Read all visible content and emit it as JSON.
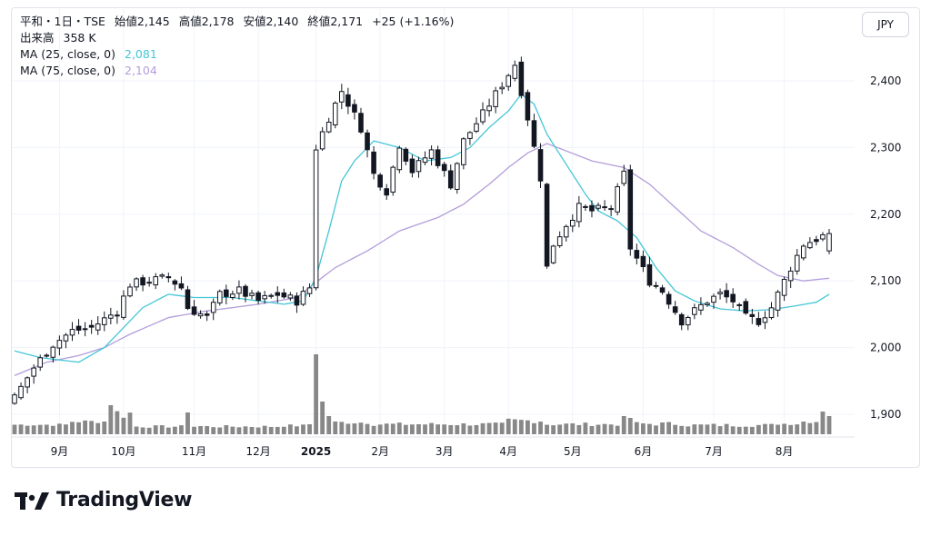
{
  "header": {
    "symbol_line": "平和・1日・TSE",
    "open_label": "始値",
    "open": "2,145",
    "high_label": "高値",
    "high": "2,178",
    "low_label": "安値",
    "low": "2,140",
    "close_label": "終値",
    "close": "2,171",
    "change": "+25 (+1.16%)",
    "volume_label": "出来高",
    "volume": "358 K",
    "ma25_label": "MA (25, close, 0)",
    "ma25_value": "2,081",
    "ma75_label": "MA (75, close, 0)",
    "ma75_value": "2,104"
  },
  "currency": "JPY",
  "brand": "TradingView",
  "colors": {
    "candle": "#131722",
    "ma25": "#45c6d6",
    "ma75": "#b39ddb",
    "volume": "#888888",
    "grid": "#f0f3fa"
  },
  "chart_data": {
    "type": "candlestick",
    "y_ticks": [
      1900,
      2000,
      2100,
      2200,
      2300,
      2400
    ],
    "y_tick_labels": [
      "1,900",
      "2,000",
      "2,100",
      "2,200",
      "2,300",
      "2,400"
    ],
    "ylim": [
      1855,
      2460
    ],
    "x_labels": [
      "9月",
      "10月",
      "11月",
      "12月",
      "2025",
      "2月",
      "3月",
      "4月",
      "5月",
      "6月",
      "7月",
      "8月"
    ],
    "x_label_bar_index": [
      7,
      17,
      28,
      38,
      47,
      57,
      67,
      77,
      87,
      98,
      109,
      120
    ],
    "bar_count": 128,
    "close_anchors": [
      [
        0,
        1925
      ],
      [
        3,
        1970
      ],
      [
        6,
        2005
      ],
      [
        9,
        2025
      ],
      [
        12,
        2030
      ],
      [
        16,
        2055
      ],
      [
        18,
        2095
      ],
      [
        21,
        2100
      ],
      [
        24,
        2105
      ],
      [
        26,
        2090
      ],
      [
        27,
        2060
      ],
      [
        30,
        2045
      ],
      [
        32,
        2080
      ],
      [
        35,
        2085
      ],
      [
        38,
        2070
      ],
      [
        41,
        2080
      ],
      [
        44,
        2070
      ],
      [
        46,
        2090
      ],
      [
        47,
        2300
      ],
      [
        49,
        2345
      ],
      [
        51,
        2385
      ],
      [
        54,
        2330
      ],
      [
        56,
        2260
      ],
      [
        58,
        2235
      ],
      [
        60,
        2305
      ],
      [
        62,
        2265
      ],
      [
        65,
        2295
      ],
      [
        68,
        2245
      ],
      [
        70,
        2310
      ],
      [
        73,
        2350
      ],
      [
        76,
        2395
      ],
      [
        78,
        2425
      ],
      [
        80,
        2345
      ],
      [
        82,
        2255
      ],
      [
        83,
        2120
      ],
      [
        84,
        2155
      ],
      [
        86,
        2185
      ],
      [
        88,
        2210
      ],
      [
        90,
        2205
      ],
      [
        93,
        2210
      ],
      [
        95,
        2260
      ],
      [
        96,
        2150
      ],
      [
        99,
        2100
      ],
      [
        101,
        2085
      ],
      [
        104,
        2040
      ],
      [
        106,
        2055
      ],
      [
        108,
        2070
      ],
      [
        110,
        2080
      ],
      [
        112,
        2070
      ],
      [
        114,
        2045
      ],
      [
        116,
        2040
      ],
      [
        118,
        2060
      ],
      [
        121,
        2120
      ],
      [
        123,
        2155
      ],
      [
        127,
        2171
      ]
    ],
    "ma25_anchors": [
      [
        0,
        1995
      ],
      [
        4,
        1985
      ],
      [
        10,
        1978
      ],
      [
        14,
        2000
      ],
      [
        20,
        2060
      ],
      [
        24,
        2080
      ],
      [
        28,
        2075
      ],
      [
        34,
        2075
      ],
      [
        42,
        2065
      ],
      [
        45,
        2070
      ],
      [
        47,
        2105
      ],
      [
        49,
        2175
      ],
      [
        51,
        2250
      ],
      [
        53,
        2280
      ],
      [
        56,
        2310
      ],
      [
        60,
        2300
      ],
      [
        64,
        2280
      ],
      [
        68,
        2285
      ],
      [
        71,
        2300
      ],
      [
        74,
        2330
      ],
      [
        77,
        2355
      ],
      [
        79,
        2380
      ],
      [
        81,
        2365
      ],
      [
        83,
        2320
      ],
      [
        86,
        2275
      ],
      [
        89,
        2230
      ],
      [
        91,
        2205
      ],
      [
        94,
        2190
      ],
      [
        97,
        2165
      ],
      [
        100,
        2120
      ],
      [
        103,
        2085
      ],
      [
        106,
        2070
      ],
      [
        110,
        2058
      ],
      [
        114,
        2055
      ],
      [
        118,
        2057
      ],
      [
        122,
        2063
      ],
      [
        125,
        2068
      ],
      [
        127,
        2080
      ]
    ],
    "ma75_anchors": [
      [
        0,
        1958
      ],
      [
        5,
        1978
      ],
      [
        10,
        1988
      ],
      [
        14,
        2000
      ],
      [
        18,
        2020
      ],
      [
        24,
        2045
      ],
      [
        30,
        2055
      ],
      [
        38,
        2065
      ],
      [
        44,
        2075
      ],
      [
        47,
        2098
      ],
      [
        50,
        2120
      ],
      [
        55,
        2145
      ],
      [
        60,
        2175
      ],
      [
        66,
        2195
      ],
      [
        70,
        2215
      ],
      [
        74,
        2245
      ],
      [
        77,
        2270
      ],
      [
        80,
        2292
      ],
      [
        83,
        2306
      ],
      [
        86,
        2295
      ],
      [
        90,
        2280
      ],
      [
        95,
        2270
      ],
      [
        99,
        2245
      ],
      [
        103,
        2210
      ],
      [
        107,
        2175
      ],
      [
        112,
        2150
      ],
      [
        116,
        2125
      ],
      [
        119,
        2108
      ],
      [
        123,
        2100
      ],
      [
        127,
        2104
      ]
    ],
    "volume_ranges": [
      [
        0,
        8,
        9,
        12
      ],
      [
        9,
        14,
        12,
        16
      ],
      [
        15,
        18,
        16,
        30
      ],
      [
        19,
        28,
        7,
        10
      ],
      [
        29,
        30,
        9,
        9
      ],
      [
        31,
        41,
        7,
        10
      ],
      [
        42,
        45,
        8,
        11
      ],
      [
        46,
        46,
        11,
        11
      ],
      [
        47,
        47,
        85,
        85
      ],
      [
        48,
        48,
        35,
        35
      ],
      [
        49,
        49,
        20,
        20
      ],
      [
        50,
        55,
        11,
        15
      ],
      [
        56,
        76,
        9,
        13
      ],
      [
        77,
        82,
        12,
        18
      ],
      [
        83,
        94,
        9,
        13
      ],
      [
        95,
        96,
        18,
        18
      ],
      [
        97,
        104,
        9,
        14
      ],
      [
        105,
        118,
        8,
        12
      ],
      [
        119,
        122,
        10,
        13
      ],
      [
        123,
        126,
        12,
        16
      ],
      [
        127,
        127,
        20,
        20
      ]
    ],
    "volume_spikes": [
      [
        15,
        32
      ],
      [
        27,
        24
      ],
      [
        47,
        88
      ],
      [
        48,
        36
      ],
      [
        95,
        20
      ],
      [
        126,
        25
      ]
    ]
  }
}
